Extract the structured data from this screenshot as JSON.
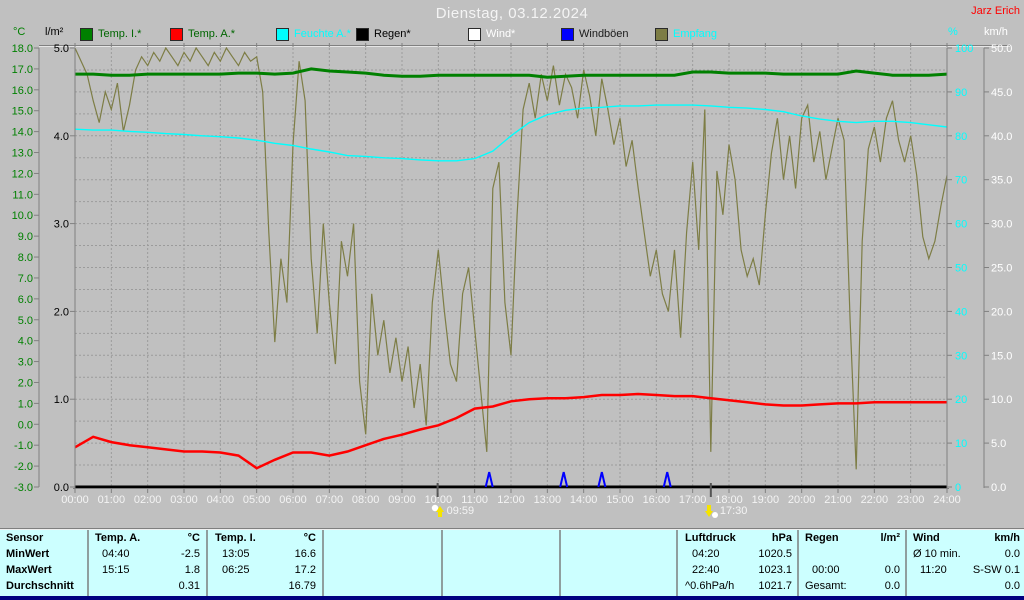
{
  "header": {
    "title": "Dienstag, 03.12.2024",
    "station": "Jarz Erich",
    "unit_left_1": "°C",
    "unit_left_2": "l/m²",
    "unit_right_1": "%",
    "unit_right_2": "km/h",
    "legend": [
      {
        "label": "Temp. I.*",
        "swatch": "#008000",
        "text_color": "#006600"
      },
      {
        "label": "Temp. A.*",
        "swatch": "#ff0000",
        "text_color": "#006600"
      },
      {
        "label": "Feuchte A.*",
        "swatch": "#00ffff",
        "text_color": "#00ffff"
      },
      {
        "label": "Regen*",
        "swatch": "#000000",
        "text_color": "#000000"
      },
      {
        "label": "Wind*",
        "swatch": "#ffffff",
        "text_color": "#ffffff"
      },
      {
        "label": "Windböen",
        "swatch": "#0000ff",
        "text_color": "#1a1a1a"
      },
      {
        "label": "Empfang",
        "swatch": "#7d7d45",
        "text_color": "#00ffff"
      }
    ]
  },
  "chart_data": {
    "type": "line",
    "title": "Dienstag, 03.12.2024",
    "x_unit": "hours",
    "x_range": [
      0,
      24
    ],
    "grid": true,
    "x_ticks": [
      "00:00",
      "01:00",
      "02:00",
      "03:00",
      "04:00",
      "05:00",
      "06:00",
      "07:00",
      "08:00",
      "09:00",
      "10:00",
      "11:00",
      "12:00",
      "13:00",
      "14:00",
      "15:00",
      "16:00",
      "17:00",
      "18:00",
      "19:00",
      "20:00",
      "21:00",
      "22:00",
      "23:00",
      "24:00"
    ],
    "axes": {
      "temp_c": {
        "unit": "°C",
        "color": "#008000",
        "min": -3,
        "max": 18,
        "labels": [
          "18.0",
          "17.0",
          "16.0",
          "15.0",
          "14.0",
          "13.0",
          "12.0",
          "11.0",
          "10.0",
          "9.0",
          "8.0",
          "7.0",
          "6.0",
          "5.0",
          "4.0",
          "3.0",
          "2.0",
          "1.0",
          "0.0",
          "-1.0",
          "-2.0",
          "-3.0"
        ]
      },
      "rain_lm2": {
        "unit": "l/m²",
        "color": "#000000",
        "min": 0,
        "max": 5,
        "labels": [
          "5.0",
          "4.0",
          "3.0",
          "2.0",
          "1.0",
          "0.0"
        ]
      },
      "humidity_pct": {
        "unit": "%",
        "color": "#00ffff",
        "min": 0,
        "max": 100,
        "labels": [
          "100",
          "90",
          "80",
          "70",
          "60",
          "50",
          "40",
          "30",
          "20",
          "10",
          "0"
        ]
      },
      "wind_kmh": {
        "unit": "km/h",
        "color": "#ffffff",
        "min": 0,
        "max": 50,
        "labels": [
          "50.0",
          "45.0",
          "40.0",
          "35.0",
          "30.0",
          "25.0",
          "20.0",
          "15.0",
          "10.0",
          "5.0",
          "0.0"
        ]
      }
    },
    "series": [
      {
        "name": "Empfang",
        "axis": "humidity_pct",
        "color": "#7d7d45",
        "width": 1.2,
        "step_min": 10,
        "values": [
          100,
          97,
          94,
          88,
          83,
          90,
          86,
          92,
          81,
          87,
          95,
          98,
          96,
          99,
          97,
          100,
          98,
          96,
          99,
          97,
          100,
          98,
          96,
          99,
          97,
          100,
          98,
          96,
          99,
          97,
          98,
          90,
          58,
          33,
          52,
          42,
          78,
          97,
          88,
          52,
          35,
          60,
          42,
          28,
          56,
          48,
          60,
          24,
          12,
          44,
          30,
          38,
          26,
          34,
          24,
          32,
          18,
          28,
          14,
          42,
          54,
          40,
          28,
          24,
          44,
          50,
          36,
          22,
          8,
          68,
          74,
          42,
          30,
          62,
          86,
          92,
          84,
          94,
          88,
          96,
          87,
          94,
          91,
          84,
          95,
          89,
          80,
          93,
          86,
          78,
          84,
          73,
          79,
          68,
          58,
          48,
          54,
          44,
          40,
          54,
          34,
          58,
          74,
          54,
          86,
          8,
          72,
          62,
          78,
          70,
          54,
          48,
          52,
          46,
          62,
          76,
          84,
          70,
          80,
          68,
          84,
          87,
          74,
          81,
          70,
          77,
          84,
          79,
          38,
          4,
          56,
          77,
          82,
          74,
          84,
          88,
          79,
          74,
          80,
          71,
          57,
          52,
          56,
          64,
          71
        ]
      },
      {
        "name": "Feuchte A.",
        "axis": "humidity_pct",
        "color": "#00ffff",
        "width": 1.4,
        "step_min": 30,
        "values": [
          81.5,
          81.3,
          81.3,
          81.0,
          80.8,
          80.5,
          80.3,
          80.0,
          79.8,
          79.5,
          79.0,
          78.3,
          77.8,
          77.0,
          76.3,
          75.5,
          75.3,
          75.0,
          74.8,
          74.5,
          74.3,
          74.3,
          74.8,
          76.5,
          80.0,
          83.0,
          84.8,
          85.8,
          86.3,
          86.5,
          86.8,
          86.8,
          87.0,
          87.0,
          87.0,
          86.8,
          86.5,
          86.3,
          86.0,
          85.5,
          84.5,
          83.8,
          83.3,
          83.0,
          83.3,
          83.3,
          83.0,
          82.5,
          82.0
        ]
      },
      {
        "name": "Temp. I.",
        "axis": "temp_c",
        "color": "#008000",
        "width": 3,
        "step_min": 30,
        "values": [
          16.75,
          16.75,
          16.7,
          16.7,
          16.75,
          16.75,
          16.75,
          16.75,
          16.75,
          16.8,
          16.8,
          16.75,
          16.8,
          17.0,
          16.9,
          16.85,
          16.8,
          16.7,
          16.65,
          16.65,
          16.7,
          16.7,
          16.7,
          16.7,
          16.7,
          16.7,
          16.6,
          16.65,
          16.7,
          16.7,
          16.7,
          16.7,
          16.7,
          16.7,
          16.85,
          16.85,
          16.8,
          16.8,
          16.8,
          16.75,
          16.75,
          16.75,
          16.75,
          16.9,
          16.8,
          16.7,
          16.7,
          16.7,
          16.75
        ]
      },
      {
        "name": "Temp. A.",
        "axis": "temp_c",
        "color": "#ff0000",
        "width": 2.5,
        "step_min": 30,
        "values": [
          -1.1,
          -0.6,
          -0.85,
          -1.0,
          -1.1,
          -1.2,
          -1.3,
          -1.3,
          -1.35,
          -1.5,
          -2.1,
          -1.7,
          -1.35,
          -1.35,
          -1.5,
          -1.3,
          -1.0,
          -0.7,
          -0.5,
          -0.25,
          -0.05,
          0.3,
          0.75,
          0.85,
          1.1,
          1.2,
          1.25,
          1.25,
          1.3,
          1.4,
          1.4,
          1.45,
          1.4,
          1.35,
          1.35,
          1.25,
          1.15,
          1.05,
          0.95,
          0.9,
          0.9,
          0.95,
          1.0,
          1.0,
          1.05,
          1.05,
          1.05,
          1.05,
          1.05
        ]
      },
      {
        "name": "Wind",
        "axis": "wind_kmh",
        "color": "#ffffff",
        "width": 1,
        "step_min": 1440,
        "values": [
          0,
          0
        ]
      },
      {
        "name": "Regen",
        "axis": "rain_lm2",
        "color": "#000000",
        "width": 3,
        "step_min": 1440,
        "values": [
          0,
          0
        ]
      }
    ],
    "gust_spikes": {
      "name": "Windböen",
      "axis": "wind_kmh",
      "color": "#0000ff",
      "points": [
        {
          "t": 11.4,
          "v": 1.7
        },
        {
          "t": 13.45,
          "v": 1.7
        },
        {
          "t": 14.5,
          "v": 1.7
        },
        {
          "t": 16.3,
          "v": 1.7
        }
      ]
    },
    "markers": [
      {
        "time": "09:59",
        "t": 9.98,
        "type": "sun-up"
      },
      {
        "time": "17:30",
        "t": 17.5,
        "type": "sun-down"
      }
    ]
  },
  "table": {
    "sensor": {
      "header": "Sensor",
      "min": "MinWert",
      "max": "MaxWert",
      "avg": "Durchschnitt"
    },
    "temp_a": {
      "header": "Temp. A.",
      "unit": "°C",
      "min_time": "04:40",
      "min_val": "-2.5",
      "max_time": "15:15",
      "max_val": "1.8",
      "avg_val": "0.31"
    },
    "temp_i": {
      "header": "Temp. I.",
      "unit": "°C",
      "min_time": "13:05",
      "min_val": "16.6",
      "max_time": "06:25",
      "max_val": "17.2",
      "avg_val": "16.79"
    },
    "pressure": {
      "header": "Luftdruck",
      "unit": "hPa",
      "min_time": "04:20",
      "min_val": "1020.5",
      "max_time": "22:40",
      "max_val": "1023.1",
      "avg_time": "^0.6hPa/h",
      "avg_val": "1021.7"
    },
    "rain": {
      "header": "Regen",
      "unit": "l/m²",
      "max_time": "00:00",
      "max_val": "0.0",
      "avg_time": "Gesamt:",
      "avg_val": "0.0"
    },
    "wind": {
      "header": "Wind",
      "unit": "km/h",
      "min_time": "Ø 10 min.",
      "min_val": "0.0",
      "max_time": "11:20",
      "max_val": "S-SW 0.1",
      "avg_val": "0.0"
    }
  }
}
